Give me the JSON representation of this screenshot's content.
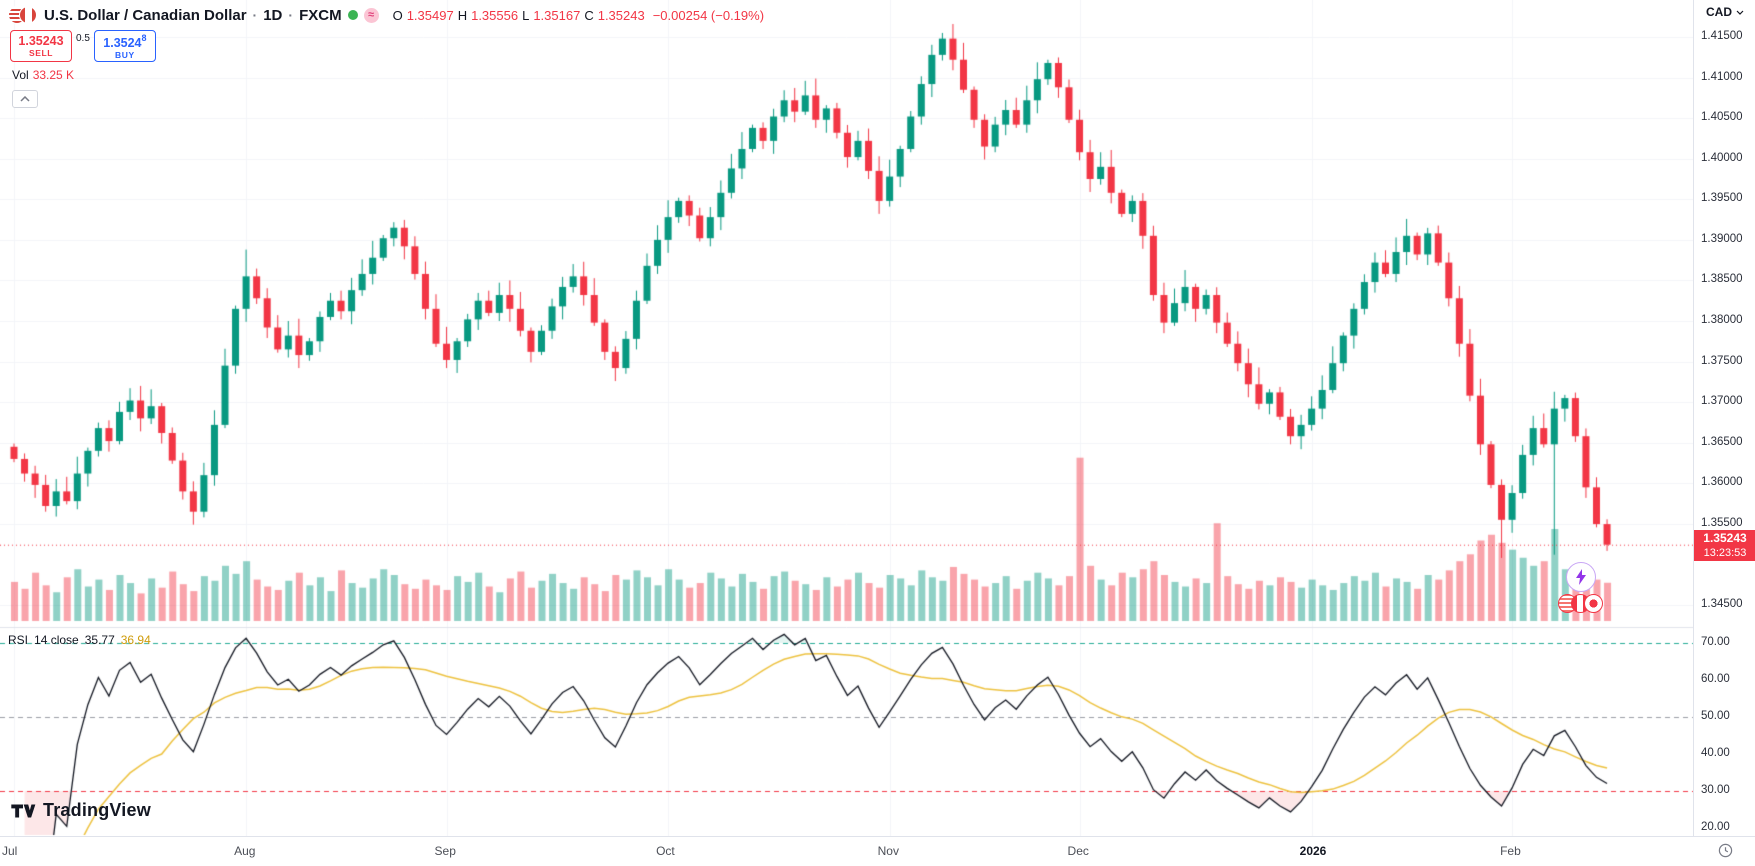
{
  "header": {
    "symbol_title": "U.S. Dollar / Canadian Dollar",
    "sep": "·",
    "timeframe": "1D",
    "exchange": "FXCM",
    "currency": "CAD",
    "ohlc": {
      "o_label": "O",
      "o": "1.35497",
      "h_label": "H",
      "h": "1.35556",
      "l_label": "L",
      "l": "1.35167",
      "c_label": "C",
      "c": "1.35243",
      "change": "−0.00254 (−0.19%)"
    }
  },
  "trade_panel": {
    "sell_price": "1.35243",
    "sell_label": "SELL",
    "spread": "0.5",
    "buy_price_main": "1.3524",
    "buy_price_sup": "8",
    "buy_label": "BUY"
  },
  "volume_row": {
    "label": "Vol",
    "value": "33.25 K"
  },
  "rsi_legend": {
    "name": "RSI",
    "params": "14 close",
    "value": "35.77",
    "ma_value": "36.94"
  },
  "watermark": "TradingView",
  "price_axis": {
    "labels": [
      "1.41500",
      "1.41000",
      "1.40500",
      "1.40000",
      "1.39500",
      "1.39000",
      "1.38500",
      "1.38000",
      "1.37500",
      "1.37000",
      "1.36500",
      "1.36000",
      "1.35500",
      "1.34500"
    ],
    "badge_price": "1.35243",
    "badge_countdown": "13:23:53"
  },
  "rsi_axis": {
    "labels": [
      "70.00",
      "60.00",
      "50.00",
      "40.00",
      "30.00",
      "20.00"
    ]
  },
  "time_axis": {
    "ticks": [
      {
        "label": "Jul",
        "index": 0
      },
      {
        "label": "Aug",
        "index": 22
      },
      {
        "label": "Sep",
        "index": 41
      },
      {
        "label": "Oct",
        "index": 62
      },
      {
        "label": "Nov",
        "index": 83
      },
      {
        "label": "Dec",
        "index": 101
      },
      {
        "label": "2026",
        "index": 123,
        "strong": true
      },
      {
        "label": "Feb",
        "index": 142
      }
    ]
  },
  "chart_data": {
    "type": "candlestick",
    "title": "U.S. Dollar / Canadian Dollar, 1D, FXCM",
    "price_range": {
      "min": 1.345,
      "max": 1.415,
      "label_step": 0.005
    },
    "last_price": 1.35243,
    "last_candle": {
      "open": 1.35497,
      "high": 1.35556,
      "low": 1.35167,
      "close": 1.35243
    },
    "first_open": 1.3645,
    "closes": [
      1.363,
      1.3612,
      1.3598,
      1.3572,
      1.359,
      1.3578,
      1.3612,
      1.364,
      1.3668,
      1.3652,
      1.3688,
      1.3702,
      1.368,
      1.3695,
      1.3662,
      1.3628,
      1.359,
      1.3565,
      1.361,
      1.3672,
      1.3745,
      1.3815,
      1.3855,
      1.3828,
      1.3792,
      1.3765,
      1.3782,
      1.3758,
      1.3775,
      1.3805,
      1.3825,
      1.3812,
      1.3838,
      1.3858,
      1.3878,
      1.3902,
      1.3915,
      1.3892,
      1.3858,
      1.3815,
      1.3772,
      1.3752,
      1.3775,
      1.3802,
      1.3825,
      1.381,
      1.3832,
      1.3815,
      1.3788,
      1.3762,
      1.3788,
      1.3818,
      1.3842,
      1.3855,
      1.3832,
      1.3798,
      1.3762,
      1.3742,
      1.3778,
      1.3825,
      1.3868,
      1.39,
      1.3928,
      1.3948,
      1.393,
      1.3902,
      1.3928,
      1.3958,
      1.3988,
      1.4012,
      1.4038,
      1.4022,
      1.4052,
      1.4072,
      1.4058,
      1.4078,
      1.4048,
      1.4062,
      1.4032,
      1.4002,
      1.4022,
      1.3985,
      1.3948,
      1.3978,
      1.4012,
      1.4052,
      1.4092,
      1.4128,
      1.4148,
      1.4122,
      1.4085,
      1.4048,
      1.4015,
      1.4042,
      1.406,
      1.4042,
      1.4072,
      1.4098,
      1.4118,
      1.4088,
      1.4048,
      1.4008,
      1.3975,
      1.399,
      1.3958,
      1.3932,
      1.3948,
      1.3905,
      1.3832,
      1.3798,
      1.3822,
      1.3842,
      1.3815,
      1.3832,
      1.3798,
      1.3772,
      1.3748,
      1.3722,
      1.3698,
      1.3712,
      1.3682,
      1.3658,
      1.3672,
      1.3692,
      1.3715,
      1.3748,
      1.3782,
      1.3815,
      1.3848,
      1.3872,
      1.3858,
      1.3885,
      1.3905,
      1.3882,
      1.3908,
      1.3872,
      1.3828,
      1.3772,
      1.3708,
      1.3648,
      1.3598,
      1.3555,
      1.3588,
      1.3635,
      1.3668,
      1.3648,
      1.3692,
      1.3705,
      1.3658,
      1.3595,
      1.35497,
      1.35243
    ],
    "wick_overrides": {
      "22": {
        "high": 1.3888
      },
      "88": {
        "high": 1.4155
      },
      "141": {
        "low": 1.3508
      },
      "146": {
        "low": 1.3512
      },
      "151": {
        "high": 1.35556,
        "low": 1.35167
      }
    },
    "volumes": [
      34,
      28,
      42,
      31,
      25,
      38,
      45,
      30,
      36,
      27,
      40,
      33,
      24,
      37,
      29,
      43,
      32,
      26,
      39,
      35,
      48,
      41,
      52,
      36,
      30,
      27,
      35,
      42,
      31,
      38,
      26,
      44,
      33,
      29,
      37,
      45,
      40,
      32,
      28,
      36,
      31,
      27,
      39,
      34,
      42,
      30,
      25,
      37,
      43,
      29,
      35,
      41,
      33,
      28,
      38,
      32,
      26,
      40,
      36,
      44,
      38,
      31,
      45,
      36,
      29,
      33,
      42,
      37,
      30,
      41,
      34,
      28,
      39,
      43,
      35,
      32,
      27,
      38,
      30,
      36,
      42,
      33,
      29,
      40,
      37,
      31,
      44,
      38,
      35,
      47,
      41,
      36,
      30,
      33,
      39,
      28,
      35,
      42,
      37,
      31,
      39,
      142,
      48,
      36,
      31,
      42,
      38,
      45,
      52,
      40,
      34,
      30,
      37,
      33,
      85,
      39,
      32,
      28,
      35,
      31,
      38,
      34,
      29,
      36,
      31,
      27,
      33,
      39,
      35,
      42,
      30,
      37,
      34,
      28,
      40,
      36,
      44,
      52,
      58,
      70,
      75,
      68,
      62,
      55,
      48,
      52,
      80,
      45,
      38,
      42,
      36,
      33.25
    ],
    "rsi": {
      "period": 14,
      "ma_period": 14,
      "levels": [
        70,
        50,
        30
      ],
      "last_value": 35.77,
      "last_ma": 36.94,
      "range": {
        "min": 20,
        "max": 70
      }
    },
    "colors": {
      "up": "#089981",
      "down": "#f23645",
      "vol_up": "rgba(8,153,129,0.45)",
      "vol_down": "rgba(242,54,69,0.45)",
      "rsi_line": "#131722",
      "rsi_ma": "#edc240",
      "band_70": "#22ab94",
      "band_50": "#9a9ca5",
      "band_30": "#f23645",
      "price_line": "#f23645",
      "badge": "#f23645"
    }
  }
}
